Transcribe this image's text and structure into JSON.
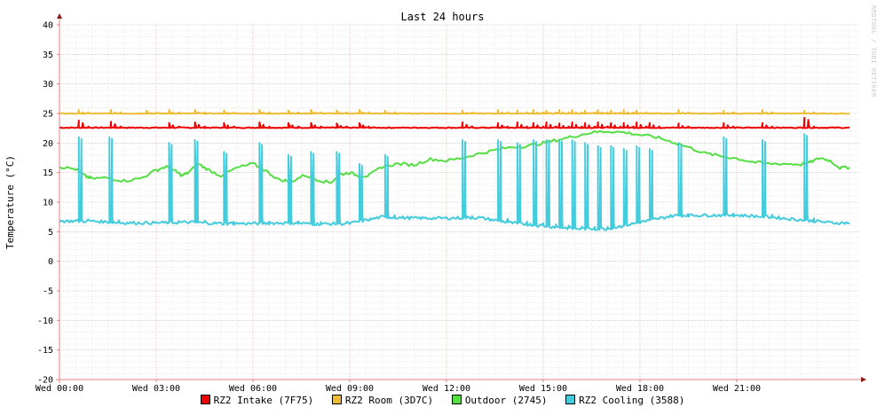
{
  "chart_data": {
    "type": "line",
    "title": "Last 24 hours",
    "ylabel": "Temperature (°C)",
    "xlabel": "",
    "ylim": [
      -20,
      40
    ],
    "yticks": [
      40,
      35,
      30,
      25,
      20,
      15,
      10,
      5,
      0,
      -5,
      -10,
      -15,
      -20
    ],
    "xlim": [
      0,
      24.8
    ],
    "xticks": [
      {
        "value": 0,
        "label": "Wed 00:00"
      },
      {
        "value": 3,
        "label": "Wed 03:00"
      },
      {
        "value": 6,
        "label": "Wed 06:00"
      },
      {
        "value": 9,
        "label": "Wed 09:00"
      },
      {
        "value": 12,
        "label": "Wed 12:00"
      },
      {
        "value": 15,
        "label": "Wed 15:00"
      },
      {
        "value": 18,
        "label": "Wed 18:00"
      },
      {
        "value": 21,
        "label": "Wed 21:00"
      }
    ],
    "grid": true,
    "legend_position": "bottom",
    "series": [
      {
        "name": "RZ2 Intake (7F75)",
        "color": "#ee0000",
        "baseline": 22.6,
        "spikes": [
          {
            "x": 0.6,
            "y": 23.8
          },
          {
            "x": 1.6,
            "y": 23.6
          },
          {
            "x": 3.4,
            "y": 23.4
          },
          {
            "x": 4.2,
            "y": 23.5
          },
          {
            "x": 5.1,
            "y": 23.4
          },
          {
            "x": 6.2,
            "y": 23.5
          },
          {
            "x": 7.1,
            "y": 23.4
          },
          {
            "x": 7.8,
            "y": 23.4
          },
          {
            "x": 8.6,
            "y": 23.3
          },
          {
            "x": 9.3,
            "y": 23.4
          },
          {
            "x": 12.5,
            "y": 23.5
          },
          {
            "x": 13.6,
            "y": 23.4
          },
          {
            "x": 14.2,
            "y": 23.5
          },
          {
            "x": 14.7,
            "y": 23.4
          },
          {
            "x": 15.1,
            "y": 23.5
          },
          {
            "x": 15.5,
            "y": 23.3
          },
          {
            "x": 15.9,
            "y": 23.5
          },
          {
            "x": 16.3,
            "y": 23.4
          },
          {
            "x": 16.7,
            "y": 23.5
          },
          {
            "x": 17.1,
            "y": 23.4
          },
          {
            "x": 17.5,
            "y": 23.4
          },
          {
            "x": 17.9,
            "y": 23.5
          },
          {
            "x": 18.3,
            "y": 23.4
          },
          {
            "x": 19.2,
            "y": 23.3
          },
          {
            "x": 20.6,
            "y": 23.4
          },
          {
            "x": 21.8,
            "y": 23.4
          },
          {
            "x": 23.1,
            "y": 24.3
          }
        ]
      },
      {
        "name": "RZ2 Room (3D7C)",
        "color": "#eebb33",
        "baseline": 25.0,
        "spikes": [
          {
            "x": 0.6,
            "y": 25.6
          },
          {
            "x": 1.6,
            "y": 25.6
          },
          {
            "x": 2.7,
            "y": 25.5
          },
          {
            "x": 3.4,
            "y": 25.6
          },
          {
            "x": 4.2,
            "y": 25.6
          },
          {
            "x": 5.1,
            "y": 25.5
          },
          {
            "x": 6.2,
            "y": 25.6
          },
          {
            "x": 7.1,
            "y": 25.5
          },
          {
            "x": 7.8,
            "y": 25.6
          },
          {
            "x": 8.6,
            "y": 25.5
          },
          {
            "x": 9.3,
            "y": 25.6
          },
          {
            "x": 10.1,
            "y": 25.5
          },
          {
            "x": 12.5,
            "y": 25.5
          },
          {
            "x": 13.6,
            "y": 25.6
          },
          {
            "x": 14.2,
            "y": 25.5
          },
          {
            "x": 14.7,
            "y": 25.6
          },
          {
            "x": 15.1,
            "y": 25.5
          },
          {
            "x": 15.5,
            "y": 25.6
          },
          {
            "x": 15.9,
            "y": 25.6
          },
          {
            "x": 16.3,
            "y": 25.5
          },
          {
            "x": 16.7,
            "y": 25.6
          },
          {
            "x": 17.1,
            "y": 25.5
          },
          {
            "x": 17.5,
            "y": 25.6
          },
          {
            "x": 17.9,
            "y": 25.5
          },
          {
            "x": 19.2,
            "y": 25.6
          },
          {
            "x": 20.6,
            "y": 25.5
          },
          {
            "x": 21.8,
            "y": 25.6
          },
          {
            "x": 23.1,
            "y": 25.5
          }
        ]
      },
      {
        "name": "Outdoor (2745)",
        "color": "#55dd44",
        "points": [
          [
            0,
            16.0
          ],
          [
            0.5,
            15.6
          ],
          [
            0.8,
            14.4
          ],
          [
            1.0,
            14.0
          ],
          [
            1.5,
            14.1
          ],
          [
            2.0,
            13.6
          ],
          [
            2.5,
            14.0
          ],
          [
            3.0,
            15.4
          ],
          [
            3.3,
            16.0
          ],
          [
            3.6,
            15.2
          ],
          [
            3.8,
            14.5
          ],
          [
            4.0,
            15.0
          ],
          [
            4.3,
            16.5
          ],
          [
            4.6,
            15.5
          ],
          [
            5.0,
            14.5
          ],
          [
            5.5,
            15.8
          ],
          [
            6.0,
            16.5
          ],
          [
            6.4,
            15.3
          ],
          [
            6.8,
            13.8
          ],
          [
            7.2,
            13.5
          ],
          [
            7.6,
            14.6
          ],
          [
            8.0,
            13.8
          ],
          [
            8.4,
            13.3
          ],
          [
            8.7,
            14.7
          ],
          [
            9.0,
            15.0
          ],
          [
            9.3,
            14.4
          ],
          [
            9.6,
            14.5
          ],
          [
            10.0,
            16.0
          ],
          [
            10.5,
            16.5
          ],
          [
            11.0,
            16.3
          ],
          [
            11.5,
            17.3
          ],
          [
            12.0,
            17.0
          ],
          [
            12.5,
            17.5
          ],
          [
            13.0,
            18.2
          ],
          [
            13.5,
            18.8
          ],
          [
            14.0,
            19.3
          ],
          [
            14.5,
            19.5
          ],
          [
            15.0,
            20.0
          ],
          [
            15.5,
            20.6
          ],
          [
            16.0,
            21.2
          ],
          [
            16.5,
            21.8
          ],
          [
            17.0,
            22.0
          ],
          [
            17.5,
            21.8
          ],
          [
            18.0,
            21.4
          ],
          [
            18.5,
            21.0
          ],
          [
            19.0,
            20.2
          ],
          [
            19.5,
            19.3
          ],
          [
            20.0,
            18.3
          ],
          [
            20.5,
            17.8
          ],
          [
            21.0,
            17.4
          ],
          [
            21.5,
            16.8
          ],
          [
            22.0,
            16.5
          ],
          [
            22.5,
            16.5
          ],
          [
            23.0,
            16.4
          ],
          [
            23.3,
            16.8
          ],
          [
            23.6,
            17.5
          ],
          [
            23.9,
            17.0
          ],
          [
            24.2,
            15.8
          ],
          [
            24.5,
            15.9
          ]
        ]
      },
      {
        "name": "RZ2 Cooling (3588)",
        "color": "#44ccdd",
        "baselines": [
          [
            0,
            6.8
          ],
          [
            1.0,
            6.8
          ],
          [
            2.0,
            6.5
          ],
          [
            3.0,
            6.5
          ],
          [
            4.0,
            6.6
          ],
          [
            5.0,
            6.4
          ],
          [
            6.0,
            6.4
          ],
          [
            7.0,
            6.5
          ],
          [
            8.0,
            6.3
          ],
          [
            9.0,
            6.4
          ],
          [
            10.0,
            7.5
          ],
          [
            11.0,
            7.3
          ],
          [
            12.0,
            7.3
          ],
          [
            13.0,
            7.4
          ],
          [
            14.0,
            6.5
          ],
          [
            15.0,
            6.0
          ],
          [
            16.0,
            5.5
          ],
          [
            17.0,
            5.5
          ],
          [
            18.0,
            6.6
          ],
          [
            19.0,
            7.7
          ],
          [
            20.0,
            7.8
          ],
          [
            21.0,
            7.8
          ],
          [
            22.0,
            7.5
          ],
          [
            23.0,
            7.0
          ],
          [
            24.0,
            6.5
          ],
          [
            24.5,
            6.5
          ]
        ],
        "spikes": [
          {
            "x": 0.6,
            "y": 21.0
          },
          {
            "x": 1.55,
            "y": 21.0
          },
          {
            "x": 3.4,
            "y": 20.0
          },
          {
            "x": 4.2,
            "y": 20.5
          },
          {
            "x": 5.1,
            "y": 18.5
          },
          {
            "x": 6.2,
            "y": 20.0
          },
          {
            "x": 7.1,
            "y": 18.0
          },
          {
            "x": 7.8,
            "y": 18.5
          },
          {
            "x": 8.6,
            "y": 18.5
          },
          {
            "x": 9.3,
            "y": 16.5
          },
          {
            "x": 10.1,
            "y": 18.0
          },
          {
            "x": 12.5,
            "y": 20.5
          },
          {
            "x": 13.6,
            "y": 20.5
          },
          {
            "x": 14.2,
            "y": 20.0
          },
          {
            "x": 14.7,
            "y": 20.5
          },
          {
            "x": 15.1,
            "y": 20.5
          },
          {
            "x": 15.5,
            "y": 20.5
          },
          {
            "x": 15.9,
            "y": 20.5
          },
          {
            "x": 16.3,
            "y": 20.0
          },
          {
            "x": 16.7,
            "y": 19.5
          },
          {
            "x": 17.1,
            "y": 19.5
          },
          {
            "x": 17.5,
            "y": 19.0
          },
          {
            "x": 17.9,
            "y": 19.5
          },
          {
            "x": 18.3,
            "y": 19.0
          },
          {
            "x": 19.2,
            "y": 20.0
          },
          {
            "x": 20.6,
            "y": 21.0
          },
          {
            "x": 21.8,
            "y": 20.5
          },
          {
            "x": 23.1,
            "y": 21.5
          }
        ]
      }
    ]
  },
  "watermark": "RRDTOOL / TOBI OETIKER"
}
